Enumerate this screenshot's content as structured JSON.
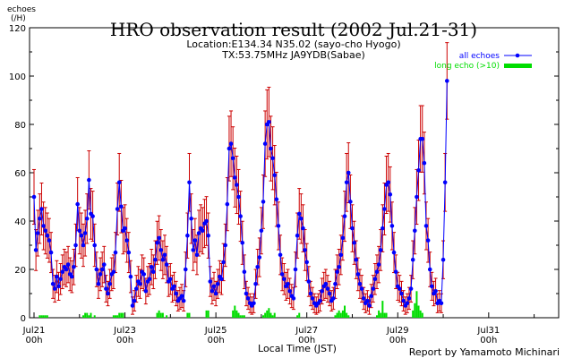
{
  "chart_data": {
    "type": "line",
    "title": "HRO observation result (2002 Jul.21-31)",
    "subtitle_lines": [
      "Location:E134.34 N35.02 (sayo-cho Hyogo)",
      "TX:53.75MHz JA9YDB(Sabae)"
    ],
    "ylabel_lines": [
      "echoes",
      "(/H)"
    ],
    "xlabel": "Local Time (JST)",
    "credit": "Report by Yamamoto Michinari",
    "ylim": [
      0,
      120
    ],
    "xlim_hours": [
      0,
      276
    ],
    "yticks": [
      "0",
      "20",
      "40",
      "60",
      "80",
      "100",
      "120"
    ],
    "xticks": [
      {
        "label": "Jul21",
        "sub": "00h"
      },
      {
        "label": "Jul23",
        "sub": "00h"
      },
      {
        "label": "Jul25",
        "sub": "00h"
      },
      {
        "label": "Jul27",
        "sub": "00h"
      },
      {
        "label": "Jul29",
        "sub": "00h"
      },
      {
        "label": "Jul31",
        "sub": "00h"
      }
    ],
    "grid": false,
    "legend_position": "top-right",
    "series": [
      {
        "name": "all echoes",
        "color": "#0000ff",
        "errorbar_color": "#cc0000",
        "values": [
          50,
          28,
          35,
          41,
          45,
          38,
          36,
          34,
          32,
          27,
          14,
          12,
          17,
          13,
          16,
          19,
          21,
          20,
          22,
          18,
          17,
          21,
          30,
          47,
          36,
          34,
          30,
          35,
          41,
          57,
          43,
          42,
          30,
          20,
          14,
          18,
          20,
          22,
          12,
          10,
          14,
          18,
          19,
          27,
          45,
          56,
          46,
          36,
          37,
          32,
          27,
          17,
          5,
          7,
          12,
          15,
          14,
          19,
          18,
          11,
          15,
          16,
          21,
          19,
          24,
          31,
          33,
          28,
          24,
          26,
          22,
          15,
          16,
          12,
          13,
          10,
          7,
          8,
          9,
          7,
          20,
          34,
          56,
          41,
          28,
          32,
          26,
          35,
          37,
          36,
          39,
          40,
          34,
          15,
          11,
          13,
          10,
          14,
          17,
          16,
          23,
          30,
          47,
          70,
          72,
          66,
          58,
          55,
          50,
          42,
          31,
          19,
          10,
          8,
          6,
          5,
          6,
          14,
          21,
          25,
          36,
          48,
          72,
          80,
          81,
          70,
          66,
          59,
          49,
          38,
          26,
          18,
          16,
          13,
          14,
          11,
          9,
          8,
          20,
          34,
          43,
          41,
          37,
          28,
          23,
          15,
          10,
          8,
          6,
          5,
          6,
          7,
          11,
          13,
          14,
          12,
          10,
          7,
          8,
          14,
          19,
          21,
          26,
          33,
          42,
          56,
          60,
          48,
          37,
          31,
          24,
          18,
          14,
          12,
          8,
          6,
          7,
          5,
          9,
          12,
          16,
          19,
          22,
          28,
          37,
          45,
          55,
          56,
          51,
          38,
          27,
          19,
          13,
          12,
          10,
          7,
          5,
          6,
          8,
          12,
          24,
          36,
          50,
          61,
          74,
          74,
          64,
          38,
          32,
          20,
          13,
          10,
          11,
          6,
          7,
          6,
          24,
          56,
          98
        ]
      },
      {
        "name": "long echo (>10)",
        "color": "#00dd00",
        "values": [
          0,
          0,
          0,
          1,
          1,
          1,
          1,
          1,
          0,
          0,
          0,
          0,
          0,
          0,
          0,
          0,
          0,
          0,
          0,
          0,
          0,
          0,
          0,
          0,
          0,
          0,
          1,
          2,
          2,
          1,
          2,
          0,
          1,
          0,
          0,
          0,
          0,
          0,
          0,
          0,
          0,
          0,
          1,
          1,
          1,
          2,
          2,
          2,
          0,
          0,
          0,
          0,
          0,
          0,
          0,
          0,
          0,
          0,
          0,
          0,
          0,
          0,
          0,
          0,
          0,
          2,
          3,
          2,
          2,
          0,
          1,
          0,
          0,
          0,
          0,
          0,
          0,
          0,
          0,
          0,
          0,
          2,
          2,
          0,
          0,
          0,
          0,
          0,
          0,
          0,
          0,
          3,
          3,
          0,
          0,
          0,
          0,
          0,
          0,
          0,
          0,
          0,
          0,
          0,
          0,
          3,
          5,
          3,
          2,
          1,
          1,
          1,
          0,
          0,
          0,
          0,
          0,
          0,
          0,
          0,
          0,
          1,
          2,
          3,
          4,
          2,
          1,
          2,
          0,
          0,
          0,
          0,
          0,
          0,
          0,
          0,
          0,
          0,
          0,
          1,
          2,
          0,
          0,
          0,
          0,
          0,
          0,
          0,
          0,
          0,
          0,
          0,
          0,
          0,
          0,
          0,
          0,
          0,
          0,
          1,
          2,
          3,
          2,
          3,
          5,
          2,
          1,
          0,
          0,
          0,
          0,
          0,
          0,
          0,
          0,
          0,
          0,
          0,
          0,
          0,
          0,
          1,
          3,
          2,
          7,
          2,
          2,
          0,
          0,
          0,
          0,
          0,
          0,
          0,
          0,
          0,
          0,
          0,
          0,
          0,
          3,
          6,
          11,
          5,
          3,
          2,
          0,
          0,
          0,
          0,
          0,
          0,
          0,
          0,
          0,
          0,
          0,
          0
        ]
      }
    ]
  }
}
